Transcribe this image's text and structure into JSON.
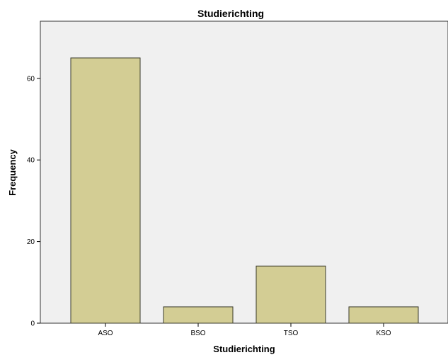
{
  "chart_data": {
    "type": "bar",
    "title": "Studierichting",
    "xlabel": "Studierichting",
    "ylabel": "Frequency",
    "categories": [
      "ASO",
      "BSO",
      "TSO",
      "KSO"
    ],
    "values": [
      65,
      4,
      14,
      4
    ],
    "ylim": [
      0,
      74
    ],
    "yticks": [
      0,
      20,
      40,
      60
    ],
    "grid": false,
    "legend": "none",
    "colors": {
      "bar_fill": "#d3cd94",
      "bar_stroke": "#3a3a2a",
      "plot_background": "#f0f0f0",
      "frame": "#333333"
    }
  }
}
